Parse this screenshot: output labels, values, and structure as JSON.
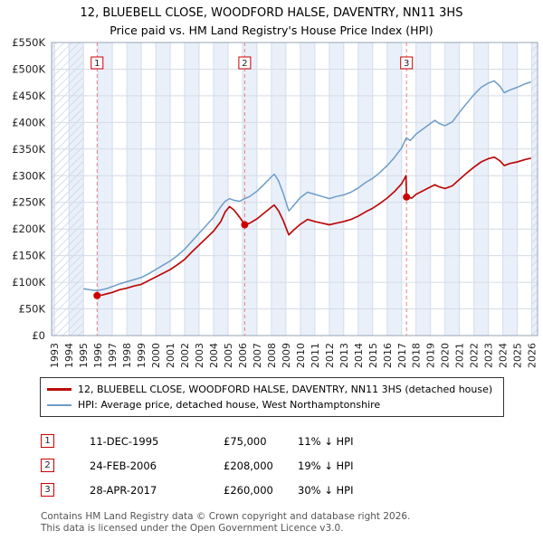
{
  "chart_data": {
    "type": "line",
    "title": "12, BLUEBELL CLOSE, WOODFORD HALSE, DAVENTRY, NN11 3HS",
    "subtitle": "Price paid vs. HM Land Registry's House Price Index (HPI)",
    "x_range": [
      1992.8,
      2026.4
    ],
    "ylim": [
      0,
      550000
    ],
    "y_tick_step": 50000,
    "y_tick_labels": [
      "£0",
      "£50K",
      "£100K",
      "£150K",
      "£200K",
      "£250K",
      "£300K",
      "£350K",
      "£400K",
      "£450K",
      "£500K",
      "£550K"
    ],
    "x_ticks": [
      1993,
      1994,
      1995,
      1996,
      1997,
      1998,
      1999,
      2000,
      2001,
      2002,
      2003,
      2004,
      2005,
      2006,
      2007,
      2008,
      2009,
      2010,
      2011,
      2012,
      2013,
      2014,
      2015,
      2016,
      2017,
      2018,
      2019,
      2020,
      2021,
      2022,
      2023,
      2024,
      2025,
      2026
    ],
    "grid": true,
    "colors": {
      "sale": "#cc0000",
      "property_line": "#bb0a0a",
      "hpi_line": "#6d9dc8",
      "stripe": "#eaf0f9",
      "grid": "#d4dce8",
      "hatch": "#c9d4e6",
      "marker_dash": "#e98080"
    },
    "hatch_regions": [
      [
        1992.8,
        1995.0
      ],
      [
        2025.95,
        2026.4
      ]
    ],
    "series": [
      {
        "id": "property",
        "name": "12, BLUEBELL CLOSE, WOODFORD HALSE, DAVENTRY, NN11 3HS (detached house)",
        "color": "#bb0a0a",
        "width": 1.7,
        "points": [
          [
            1995.95,
            75000
          ],
          [
            1996.3,
            76000
          ],
          [
            1996.7,
            79000
          ],
          [
            1997,
            81000
          ],
          [
            1997.5,
            86000
          ],
          [
            1998,
            89000
          ],
          [
            1998.5,
            93000
          ],
          [
            1999,
            96000
          ],
          [
            1999.5,
            103000
          ],
          [
            2000,
            110000
          ],
          [
            2000.5,
            117000
          ],
          [
            2001,
            124000
          ],
          [
            2001.5,
            133000
          ],
          [
            2002,
            143000
          ],
          [
            2002.5,
            157000
          ],
          [
            2003,
            170000
          ],
          [
            2003.5,
            183000
          ],
          [
            2004,
            196000
          ],
          [
            2004.5,
            214000
          ],
          [
            2004.8,
            232000
          ],
          [
            2005.1,
            242000
          ],
          [
            2005.4,
            236000
          ],
          [
            2005.8,
            222000
          ],
          [
            2006,
            214000
          ],
          [
            2006.15,
            208000
          ],
          [
            2006.5,
            211000
          ],
          [
            2007,
            219000
          ],
          [
            2007.5,
            230000
          ],
          [
            2008,
            241000
          ],
          [
            2008.2,
            245000
          ],
          [
            2008.5,
            234000
          ],
          [
            2008.8,
            217000
          ],
          [
            2009.2,
            189000
          ],
          [
            2009.5,
            197000
          ],
          [
            2010,
            209000
          ],
          [
            2010.5,
            218000
          ],
          [
            2011,
            214000
          ],
          [
            2011.5,
            211000
          ],
          [
            2012,
            208000
          ],
          [
            2012.5,
            211000
          ],
          [
            2013,
            214000
          ],
          [
            2013.5,
            218000
          ],
          [
            2014,
            224000
          ],
          [
            2014.5,
            232000
          ],
          [
            2015,
            239000
          ],
          [
            2015.5,
            248000
          ],
          [
            2016,
            258000
          ],
          [
            2016.5,
            270000
          ],
          [
            2017,
            285000
          ],
          [
            2017.3,
            300000
          ],
          [
            2017.34,
            260000
          ],
          [
            2017.7,
            258000
          ],
          [
            2018,
            265000
          ],
          [
            2018.5,
            272000
          ],
          [
            2019,
            279000
          ],
          [
            2019.3,
            283000
          ],
          [
            2019.6,
            279000
          ],
          [
            2020,
            276000
          ],
          [
            2020.5,
            281000
          ],
          [
            2021,
            293000
          ],
          [
            2021.5,
            305000
          ],
          [
            2022,
            316000
          ],
          [
            2022.5,
            326000
          ],
          [
            2023,
            332000
          ],
          [
            2023.4,
            335000
          ],
          [
            2023.8,
            328000
          ],
          [
            2024.1,
            319000
          ],
          [
            2024.5,
            323000
          ],
          [
            2025,
            326000
          ],
          [
            2025.5,
            330000
          ],
          [
            2025.95,
            333000
          ]
        ]
      },
      {
        "id": "hpi",
        "name": "HPI: Average price, detached house, West Northamptonshire",
        "color": "#6d9dc8",
        "width": 1.5,
        "points": [
          [
            1995,
            88000
          ],
          [
            1995.3,
            86500
          ],
          [
            1995.6,
            85500
          ],
          [
            1995.95,
            84500
          ],
          [
            1996.3,
            86000
          ],
          [
            1996.7,
            89000
          ],
          [
            1997,
            92000
          ],
          [
            1997.5,
            97000
          ],
          [
            1998,
            101000
          ],
          [
            1998.5,
            105000
          ],
          [
            1999,
            109000
          ],
          [
            1999.5,
            116000
          ],
          [
            2000,
            124000
          ],
          [
            2000.5,
            132000
          ],
          [
            2001,
            140000
          ],
          [
            2001.5,
            150000
          ],
          [
            2002,
            162000
          ],
          [
            2002.5,
            177000
          ],
          [
            2003,
            192000
          ],
          [
            2003.5,
            207000
          ],
          [
            2004,
            222000
          ],
          [
            2004.5,
            242000
          ],
          [
            2004.8,
            252000
          ],
          [
            2005.1,
            257000
          ],
          [
            2005.4,
            254000
          ],
          [
            2005.8,
            252000
          ],
          [
            2006.15,
            257000
          ],
          [
            2006.5,
            261000
          ],
          [
            2007,
            271000
          ],
          [
            2007.5,
            284000
          ],
          [
            2008,
            298000
          ],
          [
            2008.2,
            303000
          ],
          [
            2008.5,
            290000
          ],
          [
            2008.8,
            268000
          ],
          [
            2009.2,
            234000
          ],
          [
            2009.5,
            243000
          ],
          [
            2010,
            259000
          ],
          [
            2010.5,
            269000
          ],
          [
            2011,
            265000
          ],
          [
            2011.5,
            261000
          ],
          [
            2012,
            257000
          ],
          [
            2012.5,
            261000
          ],
          [
            2013,
            264000
          ],
          [
            2013.5,
            269000
          ],
          [
            2014,
            277000
          ],
          [
            2014.5,
            287000
          ],
          [
            2015,
            295000
          ],
          [
            2015.5,
            306000
          ],
          [
            2016,
            319000
          ],
          [
            2016.5,
            334000
          ],
          [
            2017,
            352000
          ],
          [
            2017.32,
            371000
          ],
          [
            2017.6,
            366000
          ],
          [
            2018,
            378000
          ],
          [
            2018.5,
            388000
          ],
          [
            2019,
            398000
          ],
          [
            2019.3,
            404000
          ],
          [
            2019.6,
            398000
          ],
          [
            2020,
            394000
          ],
          [
            2020.5,
            401000
          ],
          [
            2021,
            419000
          ],
          [
            2021.5,
            436000
          ],
          [
            2022,
            452000
          ],
          [
            2022.5,
            466000
          ],
          [
            2023,
            474000
          ],
          [
            2023.4,
            478000
          ],
          [
            2023.8,
            468000
          ],
          [
            2024.1,
            456000
          ],
          [
            2024.5,
            461000
          ],
          [
            2025,
            466000
          ],
          [
            2025.5,
            472000
          ],
          [
            2025.95,
            476000
          ]
        ]
      }
    ],
    "sale_markers": [
      {
        "label": "1",
        "x": 1995.95,
        "y": 75000
      },
      {
        "label": "2",
        "x": 2006.15,
        "y": 208000
      },
      {
        "label": "3",
        "x": 2017.34,
        "y": 260000
      }
    ],
    "legend_position": "bottom"
  },
  "legend": {
    "items": [
      {
        "label": "12, BLUEBELL CLOSE, WOODFORD HALSE, DAVENTRY, NN11 3HS (detached house)",
        "color": "#bb0a0a"
      },
      {
        "label": "HPI: Average price, detached house, West Northamptonshire",
        "color": "#6d9dc8"
      }
    ]
  },
  "transactions": [
    {
      "num": "1",
      "date": "11-DEC-1995",
      "price": "£75,000",
      "delta": "11% ↓ HPI"
    },
    {
      "num": "2",
      "date": "24-FEB-2006",
      "price": "£208,000",
      "delta": "19% ↓ HPI"
    },
    {
      "num": "3",
      "date": "28-APR-2017",
      "price": "£260,000",
      "delta": "30% ↓ HPI"
    }
  ],
  "footer": {
    "line1": "Contains HM Land Registry data © Crown copyright and database right 2026.",
    "line2": "This data is licensed under the Open Government Licence v3.0."
  }
}
